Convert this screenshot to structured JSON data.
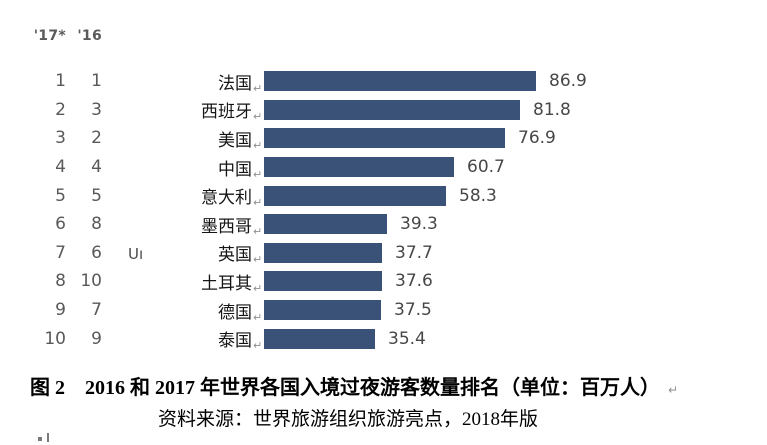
{
  "header": {
    "year_2017": "'17*",
    "year_2016": "'16"
  },
  "chart_data": {
    "type": "bar",
    "orientation": "horizontal",
    "title": "2016 和 2017 年世界各国入境过夜游客数量排名",
    "unit": "百万人",
    "bar_color": "#3a5178",
    "value_range": [
      0,
      86.9
    ],
    "rows": [
      {
        "rank_2017": "1",
        "rank_2016": "1",
        "country": "法国",
        "value": 86.9
      },
      {
        "rank_2017": "2",
        "rank_2016": "3",
        "country": "西班牙",
        "value": 81.8
      },
      {
        "rank_2017": "3",
        "rank_2016": "2",
        "country": "美国",
        "value": 76.9
      },
      {
        "rank_2017": "4",
        "rank_2016": "4",
        "country": "中国",
        "value": 60.7
      },
      {
        "rank_2017": "5",
        "rank_2016": "5",
        "country": "意大利",
        "value": 58.3
      },
      {
        "rank_2017": "6",
        "rank_2016": "8",
        "country": "墨西哥",
        "value": 39.3
      },
      {
        "rank_2017": "7",
        "rank_2016": "6",
        "country": "英国",
        "value": 37.7
      },
      {
        "rank_2017": "8",
        "rank_2016": "10",
        "country": "土耳其",
        "value": 37.6
      },
      {
        "rank_2017": "9",
        "rank_2016": "7",
        "country": "德国",
        "value": 37.5
      },
      {
        "rank_2017": "10",
        "rank_2016": "9",
        "country": "泰国",
        "value": 35.4
      }
    ]
  },
  "stray_text": "Uı",
  "marks": {
    "return_mark": "↵"
  },
  "caption": "图 2　2016 和 2017 年世界各国入境过夜游客数量排名（单位：百万人）",
  "source": "资料来源：世界旅游组织旅游亮点，2018年版"
}
